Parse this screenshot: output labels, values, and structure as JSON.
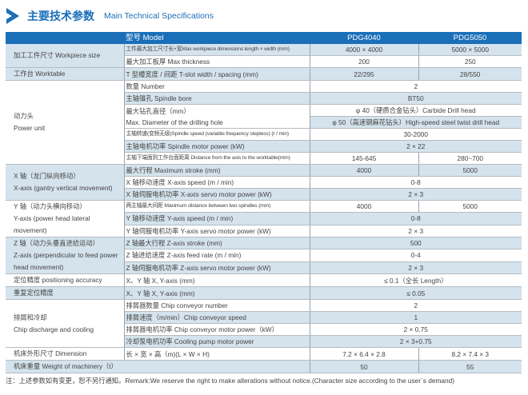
{
  "title": {
    "cn": "主要技术参数",
    "en": "Main Technical Specifications",
    "icon": "chevron-right-icon",
    "color": "#1a6fb8"
  },
  "header": {
    "model_label": "型号 Model",
    "models": [
      "PDG4040",
      "PDG5050"
    ]
  },
  "colors": {
    "header": "#1a6fb8",
    "shade": "#d4e3ec"
  },
  "groups": [
    {
      "label": [
        "加工工件尺寸 Workpiece size"
      ],
      "shaded": true,
      "rows": [
        {
          "param": "工件最大加工尺寸长×宽Max workpiece dimensions length × width (mm)",
          "values": [
            "4000 × 4000",
            "5000 × 5000"
          ]
        },
        {
          "param": "最大加工板厚 Max thickness",
          "values": [
            "200",
            "250"
          ]
        }
      ]
    },
    {
      "label": [
        "工作台 Worktable"
      ],
      "shaded": true,
      "rows": [
        {
          "param": "T 型槽宽度 / 间距 T-slot width / spacing (mm)",
          "values": [
            "22/295",
            "28/550"
          ]
        }
      ]
    },
    {
      "label": [
        "动力头",
        "Power unit"
      ],
      "shaded": false,
      "rows": [
        {
          "param": "数量 Number",
          "values": [
            "2"
          ]
        },
        {
          "param": "主轴锥孔 Spindle bore",
          "values": [
            "BT50"
          ]
        },
        {
          "param": "最大钻孔直径（mm）",
          "param2": "Max. Diameter of the drilling hole",
          "values": [
            "φ 40（硬质合金钻头）Carbide Drill head"
          ],
          "values2": [
            "φ 50（高速钢麻花钻头）High-speed steel twist drill head"
          ]
        },
        {
          "param": "主轴转速(变频无级)Spindle speed (variable frequency stepless) (r / min)",
          "values": [
            "30-2000"
          ]
        },
        {
          "param": "主轴电机功率 Spindle motor power (kW)",
          "values": [
            "2 × 22"
          ]
        },
        {
          "param": "主轴下端面到工作台面距离 Distance from the axis to the worktable(mm)",
          "values": [
            "145-645",
            "280~700"
          ]
        }
      ]
    },
    {
      "label": [
        "X 轴（龙门纵向移动）",
        "X-axis (gantry vertical movement)"
      ],
      "shaded": true,
      "rows": [
        {
          "param": "最大行程 Maximum stroke (mm)",
          "values": [
            "4000",
            "5000"
          ]
        },
        {
          "param": "X 轴移动速度 X-axis speed (m / min)",
          "values": [
            "0-8"
          ]
        },
        {
          "param": "X 轴伺服电机功率 X-axis servo motor power (kW)",
          "values": [
            "2 × 3"
          ]
        }
      ]
    },
    {
      "label": [
        "Y 轴（动力头横向移动）",
        "Y-axis (power head lateral movement)"
      ],
      "shaded": false,
      "rows": [
        {
          "param": "两主轴最大间距 Maximum distance between two spindles (mm)",
          "values": [
            "4000",
            "5000"
          ]
        },
        {
          "param": "Y 轴移动速度 Y-axis speed (m / min)",
          "values": [
            "0-8"
          ]
        },
        {
          "param": "Y 轴伺服电机功率 Y-axis servo motor power (kW)",
          "values": [
            "2 × 3"
          ]
        }
      ]
    },
    {
      "label": [
        "Z 轴（动力头垂直进给运动）",
        "Z-axis (perpendicular to feed power head movement)"
      ],
      "shaded": true,
      "rows": [
        {
          "param": "Z 轴最大行程 Z-axis stroke (mm)",
          "values": [
            "500"
          ]
        },
        {
          "param": "Z 轴进给速度 Z-axis feed rate (m / min)",
          "values": [
            "0-4"
          ]
        },
        {
          "param": "Z 轴伺服电机功率 Z-axis servo motor power (kW)",
          "values": [
            "2 × 3"
          ]
        }
      ]
    },
    {
      "label": [
        "定位精度 positioning accuracy"
      ],
      "shaded": false,
      "rows": [
        {
          "param": "X、Y 轴 X, Y-axis (mm)",
          "values": [
            "≤ 0.1（全长 Length）"
          ]
        }
      ]
    },
    {
      "label": [
        "重复定位精度"
      ],
      "shaded": true,
      "rows": [
        {
          "param": "X、Y 轴 X, Y-axis (mm)",
          "values": [
            "≤ 0.05"
          ]
        }
      ]
    },
    {
      "label": [
        "排屑和冷却",
        "Chip discharge and cooling"
      ],
      "shaded": false,
      "rows": [
        {
          "param": "排屑器数量 Chip conveyor number",
          "values": [
            "2"
          ]
        },
        {
          "param": "排屑速度（m/min）Chip conveyor speed",
          "values": [
            "1"
          ]
        },
        {
          "param": "排屑器电机功率 Chip conveyor motor power（kW）",
          "values": [
            "2 × 0.75"
          ]
        },
        {
          "param": "冷却泵电机功率 Cooling pump motor power",
          "values": [
            "2 × 3+0.75"
          ]
        }
      ]
    },
    {
      "label": [
        "机床外形尺寸 Dimension"
      ],
      "shaded": false,
      "rows": [
        {
          "param": "长 × 宽 × 高（m)(L × W × H)",
          "values": [
            "7.2 × 6.4 × 2.8",
            "8.2 × 7.4 × 3"
          ]
        }
      ]
    },
    {
      "label": [
        "机床重量 Weight of machinery（t）"
      ],
      "shaded": true,
      "span": true,
      "rows": [
        {
          "values": [
            "50",
            "55"
          ]
        }
      ]
    }
  ],
  "footer": "注：上述参数如有变更，恕不另行通知。Remark:We reserve the right to make alterations without notice.(Character size according to the user`s demand)"
}
